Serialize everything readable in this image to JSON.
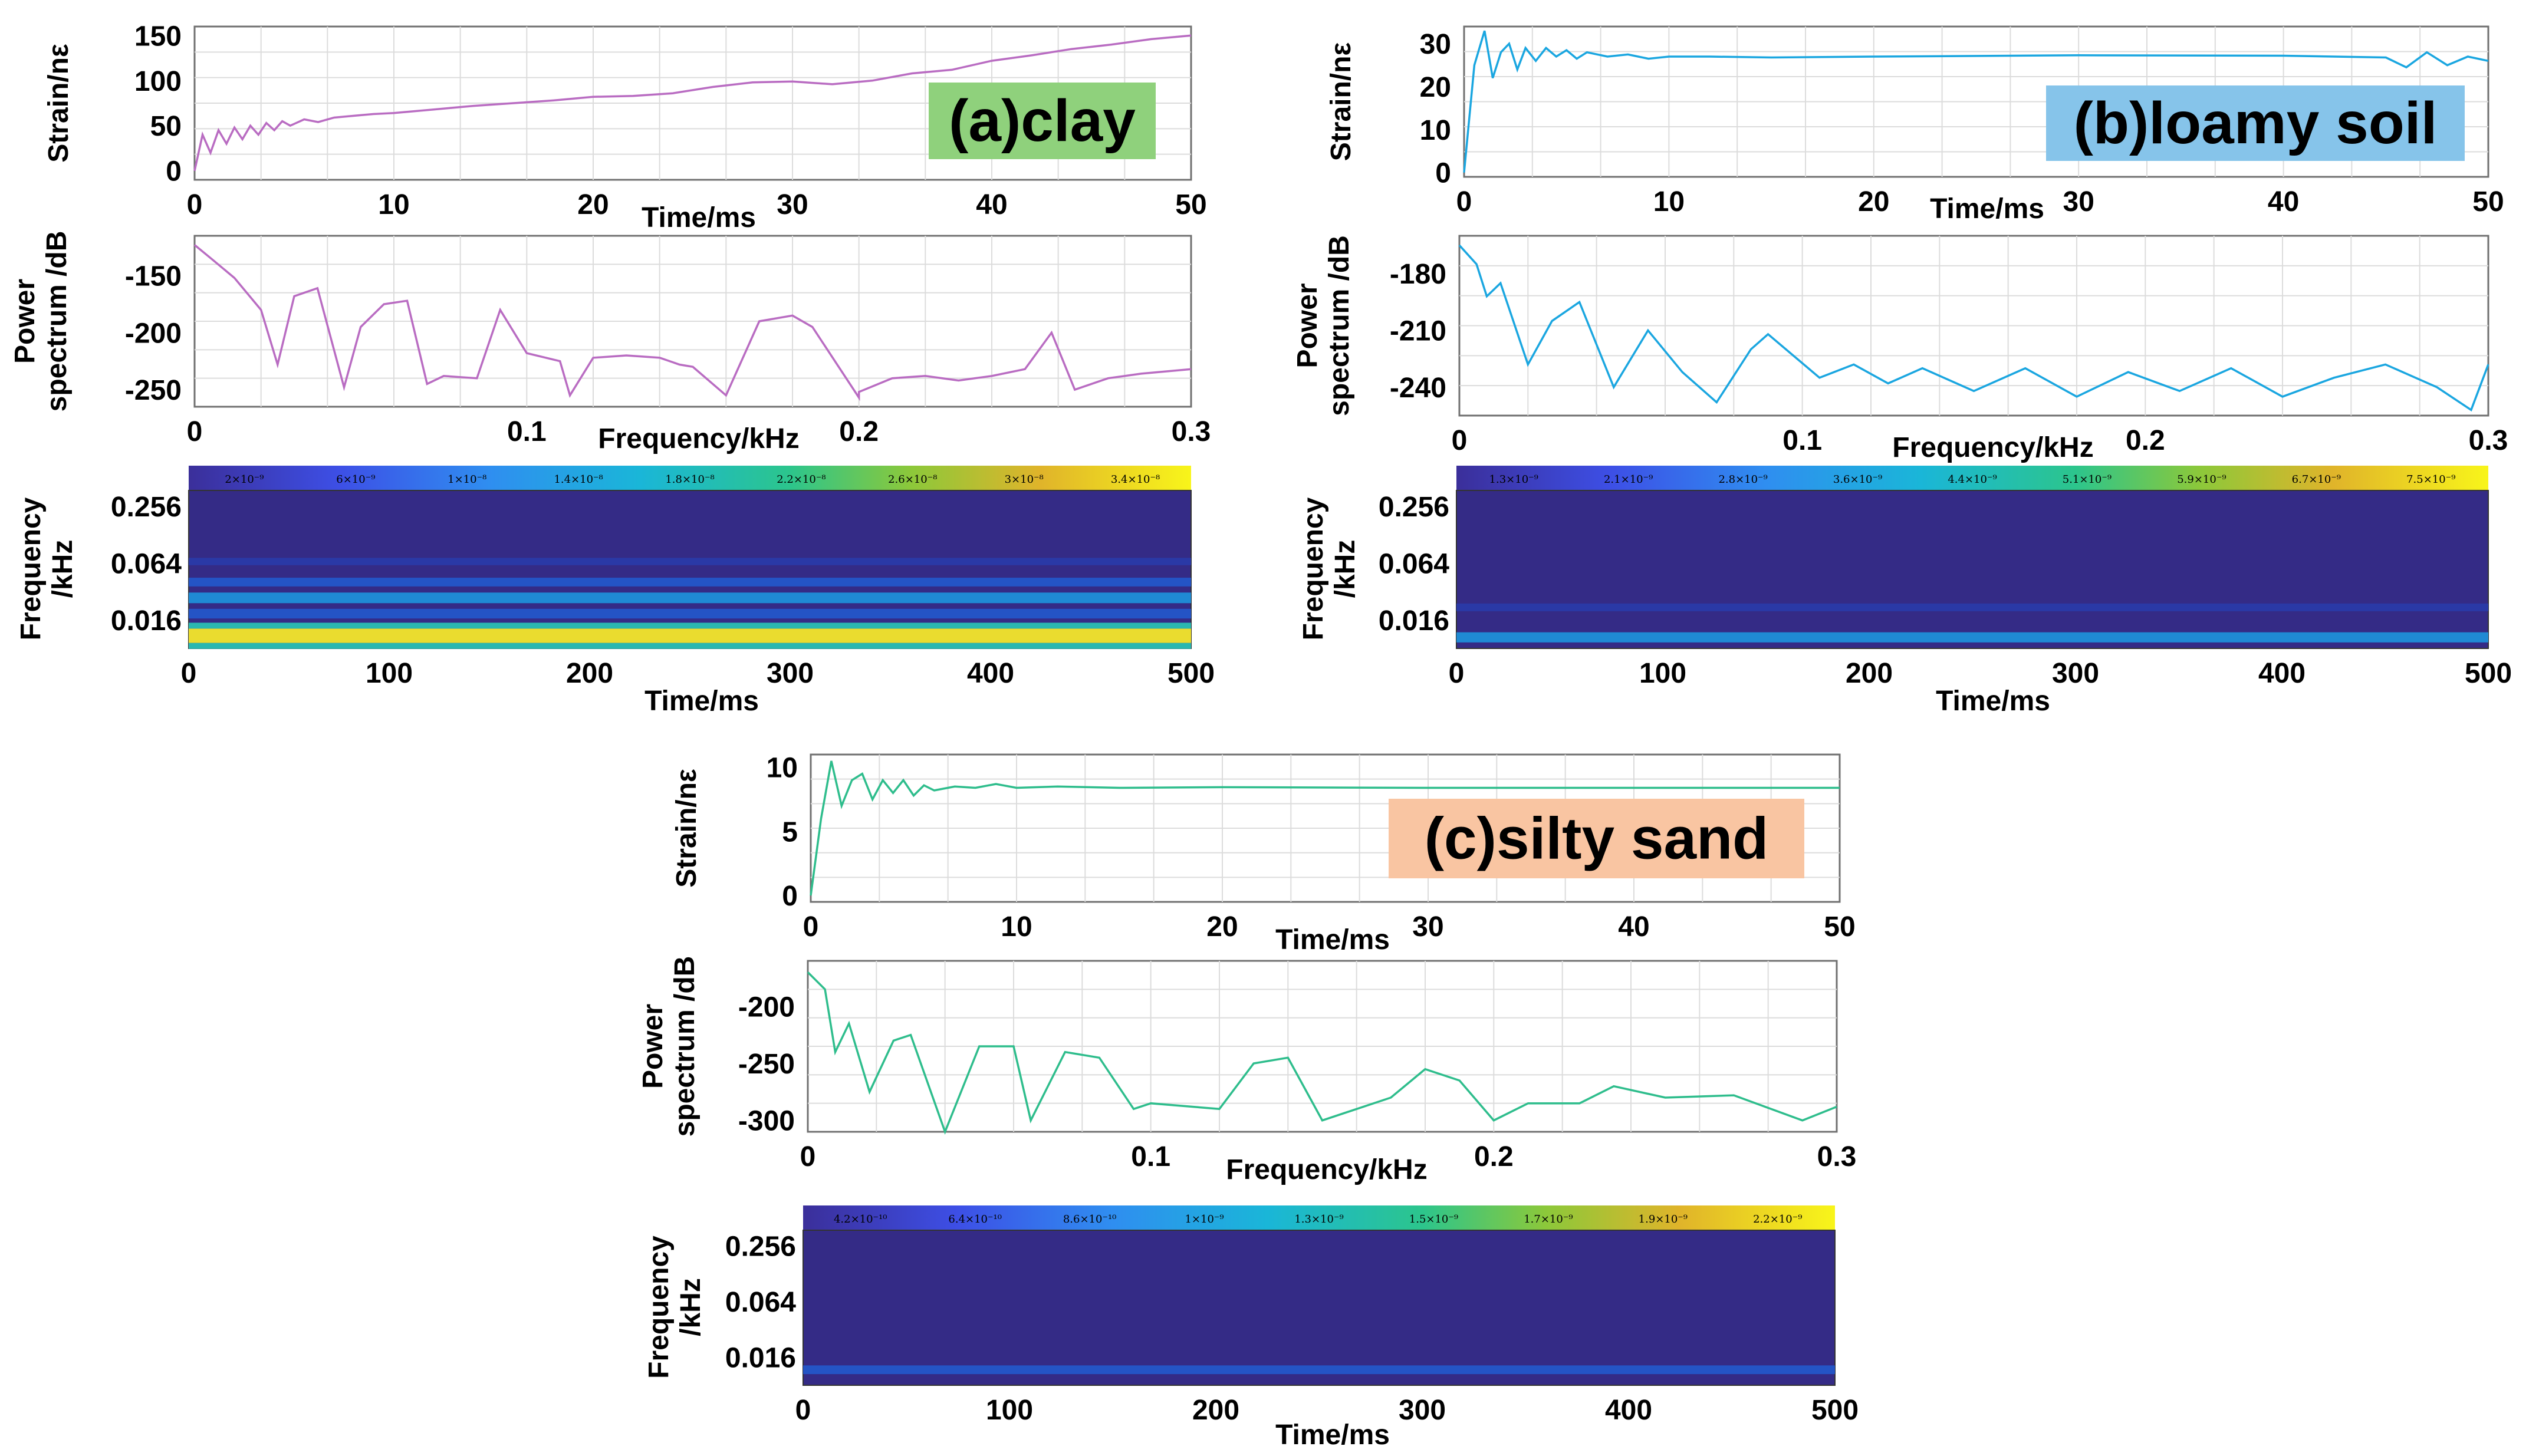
{
  "colors": {
    "clay": "#b96cc2",
    "loamy": "#1aa6e0",
    "silty": "#2ebd8c",
    "clay_badge": "#8fd17c",
    "loamy_badge": "#86c4ea",
    "silty_badge": "#f9c5a2",
    "spectro_bg": "#342b86"
  },
  "chart_data": [
    {
      "id": "a",
      "badge": "(a)clay",
      "strain": {
        "type": "line",
        "ylabel": "Strain/nε",
        "xlabel": "Time/ms",
        "xlim": [
          0,
          50
        ],
        "ylim": [
          -10,
          160
        ],
        "xticks": [
          "0",
          "10",
          "20",
          "30",
          "40",
          "50"
        ],
        "yticks": [
          "0",
          "50",
          "100",
          "150"
        ],
        "x": [
          0,
          0.4,
          0.8,
          1.2,
          1.6,
          2,
          2.4,
          2.8,
          3.2,
          3.6,
          4,
          4.4,
          4.8,
          5.5,
          6.2,
          7,
          8,
          9,
          10,
          12,
          14,
          16,
          18,
          20,
          22,
          24,
          26,
          28,
          30,
          32,
          34,
          36,
          38,
          40,
          42,
          44,
          46,
          48,
          50
        ],
        "y": [
          0,
          40,
          20,
          45,
          30,
          48,
          35,
          50,
          40,
          53,
          45,
          55,
          50,
          57,
          54,
          59,
          61,
          63,
          64,
          68,
          72,
          75,
          78,
          82,
          83,
          86,
          93,
          98,
          99,
          96,
          100,
          108,
          112,
          122,
          128,
          135,
          140,
          146,
          150
        ]
      },
      "spectrum": {
        "type": "line",
        "ylabel": "Power spectrum /dB",
        "xlabel": "Frequency/kHz",
        "xlim": [
          0,
          0.3
        ],
        "ylim": [
          -265,
          -115
        ],
        "xticks": [
          "0",
          "0.1",
          "0.2",
          "0.3"
        ],
        "yticks": [
          "-150",
          "-200",
          "-250"
        ],
        "x": [
          0,
          0.005,
          0.012,
          0.02,
          0.025,
          0.03,
          0.037,
          0.045,
          0.05,
          0.057,
          0.064,
          0.07,
          0.075,
          0.085,
          0.092,
          0.1,
          0.11,
          0.113,
          0.12,
          0.13,
          0.14,
          0.146,
          0.15,
          0.16,
          0.17,
          0.18,
          0.186,
          0.2,
          0.2,
          0.21,
          0.22,
          0.23,
          0.24,
          0.25,
          0.258,
          0.265,
          0.275,
          0.285,
          0.3
        ],
        "y": [
          -123,
          -135,
          -152,
          -180,
          -228,
          -168,
          -161,
          -248,
          -195,
          -175,
          -172,
          -245,
          -238,
          -240,
          -180,
          -218,
          -225,
          -255,
          -222,
          -220,
          -222,
          -228,
          -230,
          -255,
          -190,
          -185,
          -195,
          -257,
          -252,
          -240,
          -238,
          -242,
          -238,
          -232,
          -200,
          -250,
          -240,
          -236,
          -232
        ]
      },
      "spectrogram": {
        "type": "heatmap",
        "ylabel": "Frequency /kHz",
        "xlabel": "Time/ms",
        "xlim": [
          0,
          500
        ],
        "xticks": [
          "0",
          "100",
          "200",
          "300",
          "400",
          "500"
        ],
        "yticks": [
          "0.256",
          "0.064",
          "0.016"
        ],
        "colorbar": [
          "2×10⁻⁹",
          "6×10⁻⁹",
          "1×10⁻⁸",
          "1.4×10⁻⁸",
          "1.8×10⁻⁸",
          "2.2×10⁻⁸",
          "2.6×10⁻⁸",
          "3×10⁻⁸",
          "3.4×10⁻⁸"
        ],
        "bands": [
          {
            "pos": 0.45,
            "intensity": 0.15
          },
          {
            "pos": 0.58,
            "intensity": 0.3
          },
          {
            "pos": 0.68,
            "intensity": 0.5
          },
          {
            "pos": 0.78,
            "intensity": 0.4
          },
          {
            "pos": 0.92,
            "intensity": 0.9
          }
        ]
      }
    },
    {
      "id": "b",
      "badge": "(b)loamy soil",
      "strain": {
        "type": "line",
        "ylabel": "Strain/nε",
        "xlabel": "Time/ms",
        "xlim": [
          0,
          50
        ],
        "ylim": [
          -1,
          34
        ],
        "xticks": [
          "0",
          "10",
          "20",
          "30",
          "40",
          "50"
        ],
        "yticks": [
          "0",
          "10",
          "20",
          "30"
        ],
        "x": [
          0,
          0.5,
          1,
          1.4,
          1.8,
          2.2,
          2.6,
          3,
          3.5,
          4,
          4.5,
          5,
          5.5,
          6,
          7,
          8,
          9,
          10,
          12,
          15,
          20,
          30,
          40,
          45,
          46,
          47,
          48,
          49,
          50
        ],
        "y": [
          0,
          25,
          33,
          22,
          28,
          30,
          24,
          29,
          26,
          29,
          27,
          28.5,
          26.5,
          28,
          27,
          27.5,
          26.5,
          27,
          27,
          26.8,
          27,
          27.3,
          27.2,
          26.8,
          24.5,
          28,
          25,
          27,
          26
        ]
      },
      "spectrum": {
        "type": "line",
        "ylabel": "Power spectrum /dB",
        "xlabel": "Frequency/kHz",
        "xlim": [
          0,
          0.3
        ],
        "ylim": [
          -255,
          -160
        ],
        "xticks": [
          "0",
          "0.1",
          "0.2",
          "0.3"
        ],
        "yticks": [
          "-180",
          "-210",
          "-240"
        ],
        "x": [
          0,
          0.005,
          0.008,
          0.012,
          0.02,
          0.027,
          0.035,
          0.045,
          0.055,
          0.065,
          0.075,
          0.085,
          0.09,
          0.105,
          0.115,
          0.125,
          0.135,
          0.15,
          0.165,
          0.18,
          0.195,
          0.21,
          0.225,
          0.24,
          0.255,
          0.27,
          0.285,
          0.295,
          0.3
        ],
        "y": [
          -165,
          -175,
          -192,
          -185,
          -228,
          -205,
          -195,
          -240,
          -210,
          -232,
          -248,
          -220,
          -212,
          -235,
          -228,
          -238,
          -230,
          -242,
          -230,
          -245,
          -232,
          -242,
          -230,
          -245,
          -235,
          -228,
          -240,
          -252,
          -228
        ]
      },
      "spectrogram": {
        "type": "heatmap",
        "ylabel": "Frequency /kHz",
        "xlabel": "Time/ms",
        "xlim": [
          0,
          500
        ],
        "xticks": [
          "0",
          "100",
          "200",
          "300",
          "400",
          "500"
        ],
        "yticks": [
          "0.256",
          "0.064",
          "0.016"
        ],
        "colorbar": [
          "1.3×10⁻⁹",
          "2.1×10⁻⁹",
          "2.8×10⁻⁹",
          "3.6×10⁻⁹",
          "4.4×10⁻⁹",
          "5.1×10⁻⁹",
          "5.9×10⁻⁹",
          "6.7×10⁻⁹",
          "7.5×10⁻⁹"
        ],
        "bands": [
          {
            "pos": 0.74,
            "intensity": 0.2
          },
          {
            "pos": 0.93,
            "intensity": 0.45
          }
        ]
      }
    },
    {
      "id": "c",
      "badge": "(c)silty sand",
      "strain": {
        "type": "line",
        "ylabel": "Strain/nε",
        "xlabel": "Time/ms",
        "xlim": [
          0,
          50
        ],
        "ylim": [
          -0.5,
          11
        ],
        "xticks": [
          "0",
          "10",
          "20",
          "30",
          "40",
          "50"
        ],
        "yticks": [
          "0",
          "5",
          "10"
        ],
        "x": [
          0,
          0.5,
          1,
          1.5,
          2,
          2.5,
          3,
          3.5,
          4,
          4.5,
          5,
          5.5,
          6,
          7,
          8,
          9,
          10,
          12,
          15,
          20,
          30,
          40,
          50
        ],
        "y": [
          0,
          6,
          10.5,
          7,
          9,
          9.5,
          7.5,
          9,
          8,
          9,
          7.8,
          8.6,
          8.2,
          8.5,
          8.4,
          8.7,
          8.4,
          8.5,
          8.4,
          8.45,
          8.4,
          8.4,
          8.4
        ]
      },
      "spectrum": {
        "type": "line",
        "ylabel": "Power spectrum /dB",
        "xlabel": "Frequency/kHz",
        "xlim": [
          0,
          0.3
        ],
        "ylim": [
          -310,
          -160
        ],
        "xticks": [
          "0",
          "0.1",
          "0.2",
          "0.3"
        ],
        "yticks": [
          "-200",
          "-250",
          "-300"
        ],
        "x": [
          0,
          0.005,
          0.008,
          0.012,
          0.018,
          0.025,
          0.03,
          0.04,
          0.05,
          0.06,
          0.065,
          0.075,
          0.085,
          0.095,
          0.1,
          0.12,
          0.13,
          0.14,
          0.15,
          0.17,
          0.18,
          0.19,
          0.2,
          0.21,
          0.225,
          0.235,
          0.25,
          0.27,
          0.29,
          0.3
        ],
        "y": [
          -170,
          -185,
          -240,
          -215,
          -275,
          -230,
          -225,
          -310,
          -235,
          -235,
          -300,
          -240,
          -245,
          -290,
          -285,
          -290,
          -250,
          -245,
          -300,
          -280,
          -255,
          -265,
          -300,
          -285,
          -285,
          -270,
          -280,
          -278,
          -300,
          -288
        ]
      },
      "spectrogram": {
        "type": "heatmap",
        "ylabel": "Frequency /kHz",
        "xlabel": "Time/ms",
        "xlim": [
          0,
          500
        ],
        "xticks": [
          "0",
          "100",
          "200",
          "300",
          "400",
          "500"
        ],
        "yticks": [
          "0.256",
          "0.064",
          "0.016"
        ],
        "colorbar": [
          "4.2×10⁻¹⁰",
          "6.4×10⁻¹⁰",
          "8.6×10⁻¹⁰",
          "1×10⁻⁹",
          "1.3×10⁻⁹",
          "1.5×10⁻⁹",
          "1.7×10⁻⁹",
          "1.9×10⁻⁹",
          "2.2×10⁻⁹"
        ],
        "bands": [
          {
            "pos": 0.9,
            "intensity": 0.3
          }
        ]
      }
    }
  ]
}
